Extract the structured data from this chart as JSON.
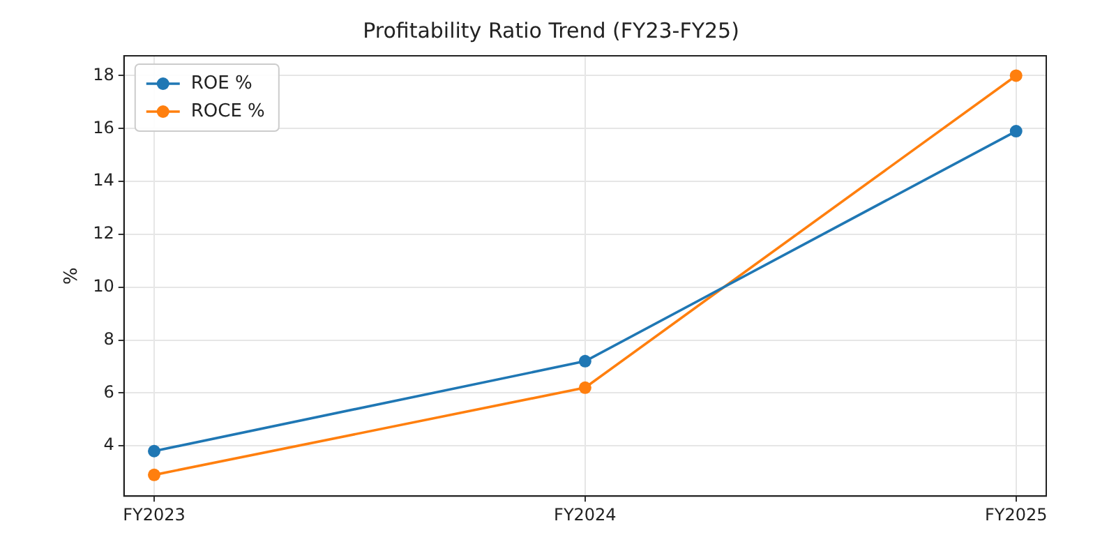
{
  "chart_data": {
    "type": "line",
    "title": "Profitability Ratio Trend (FY23-FY25)",
    "ylabel": "%",
    "categories": [
      "FY2023",
      "FY2024",
      "FY2025"
    ],
    "series": [
      {
        "name": "ROE %",
        "color": "#1f77b4",
        "values": [
          3.8,
          7.2,
          15.9
        ]
      },
      {
        "name": "ROCE %",
        "color": "#ff7f0e",
        "values": [
          2.9,
          6.2,
          18.0
        ]
      }
    ],
    "ylim": [
      2.1,
      18.75
    ],
    "yticks": [
      4,
      6,
      8,
      10,
      12,
      14,
      16,
      18
    ],
    "grid": true,
    "legend": "top left",
    "marker": "circle",
    "line_style": "solid"
  }
}
